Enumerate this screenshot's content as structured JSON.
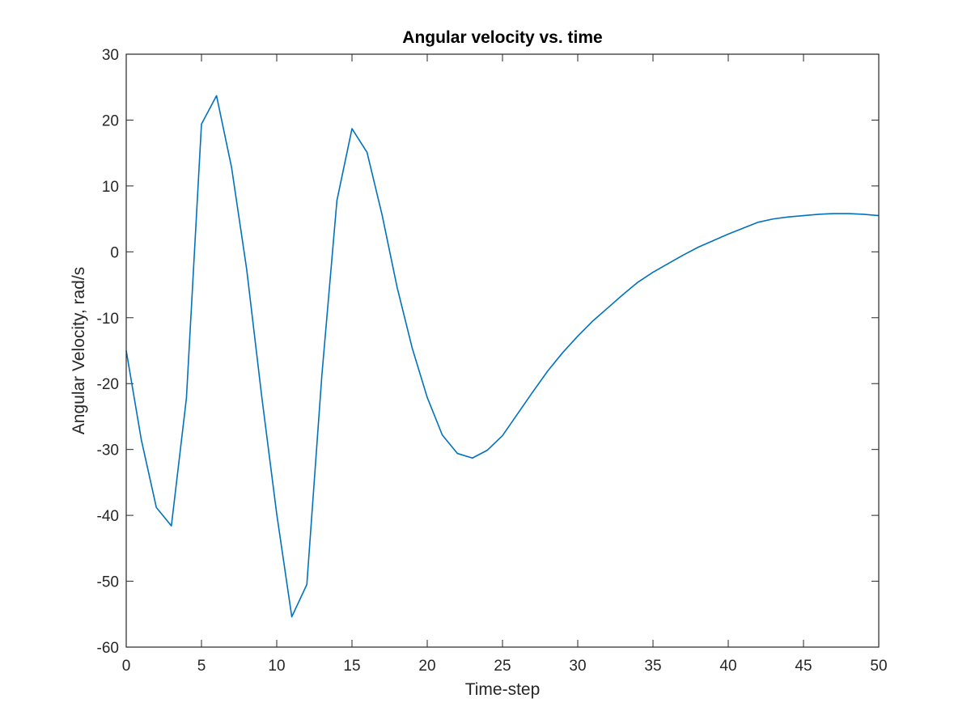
{
  "chart_data": {
    "type": "line",
    "title": "Angular velocity vs. time",
    "xlabel": "Time-step",
    "ylabel": "Angular Velocity, rad/s",
    "xlim": [
      0,
      50
    ],
    "ylim": [
      -60,
      30
    ],
    "xticks": [
      0,
      5,
      10,
      15,
      20,
      25,
      30,
      35,
      40,
      45,
      50
    ],
    "yticks": [
      30,
      20,
      10,
      0,
      -10,
      -20,
      -30,
      -40,
      -50,
      -60
    ],
    "grid": false,
    "line_color": "#0072BD",
    "axis_color": "#262626",
    "series": [
      {
        "x": [
          0,
          1,
          2,
          3,
          4,
          5,
          6,
          7,
          8,
          9,
          10,
          11,
          12,
          13,
          14,
          15,
          16,
          17,
          18,
          19,
          20,
          21,
          22,
          23,
          24,
          25,
          26,
          27,
          28,
          29,
          30,
          31,
          32,
          33,
          34,
          35,
          36,
          37,
          38,
          39,
          40,
          41,
          42,
          43,
          44,
          45,
          46,
          47,
          48,
          49,
          50
        ],
        "y": [
          -15,
          -28.5,
          -38.8,
          -41.6,
          -22.2,
          19.4,
          23.7,
          12.8,
          -2.6,
          -21.9,
          -39.8,
          -55.4,
          -50.5,
          -18.7,
          7.8,
          18.7,
          15.1,
          5.6,
          -5.4,
          -14.6,
          -22.1,
          -27.8,
          -30.6,
          -31.3,
          -30.1,
          -27.9,
          -24.6,
          -21.3,
          -18.1,
          -15.3,
          -12.8,
          -10.5,
          -8.5,
          -6.5,
          -4.6,
          -3.1,
          -1.8,
          -0.5,
          0.7,
          1.7,
          2.7,
          3.6,
          4.5,
          5.0,
          5.3,
          5.5,
          5.7,
          5.8,
          5.8,
          5.7,
          5.5
        ]
      }
    ]
  }
}
